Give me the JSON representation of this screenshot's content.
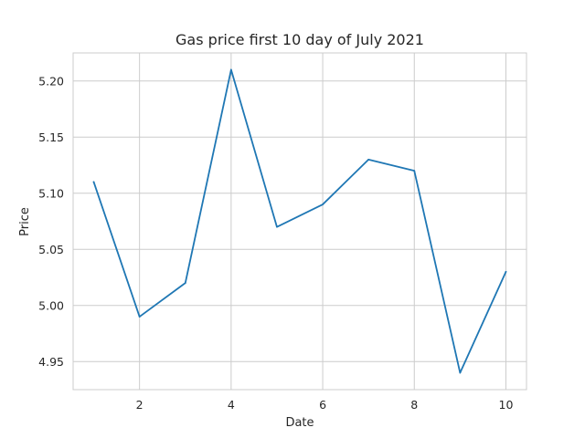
{
  "chart_data": {
    "type": "line",
    "title": "Gas price first 10 day of July 2021",
    "xlabel": "Date",
    "ylabel": "Price",
    "x": [
      1,
      2,
      3,
      4,
      5,
      6,
      7,
      8,
      9,
      10
    ],
    "y": [
      5.11,
      4.99,
      5.02,
      5.21,
      5.07,
      5.09,
      5.13,
      5.12,
      4.94,
      5.03
    ],
    "xlim": [
      0.55,
      10.45
    ],
    "ylim": [
      4.925,
      5.225
    ],
    "xticks": [
      2,
      4,
      6,
      8,
      10
    ],
    "xtick_labels": [
      "2",
      "4",
      "6",
      "8",
      "10"
    ],
    "yticks": [
      4.95,
      5.0,
      5.05,
      5.1,
      5.15,
      5.2
    ],
    "ytick_labels": [
      "4.95",
      "5.00",
      "5.05",
      "5.10",
      "5.15",
      "5.20"
    ],
    "grid": true,
    "line_color": "#1f77b4",
    "grid_color": "#cccccc"
  }
}
